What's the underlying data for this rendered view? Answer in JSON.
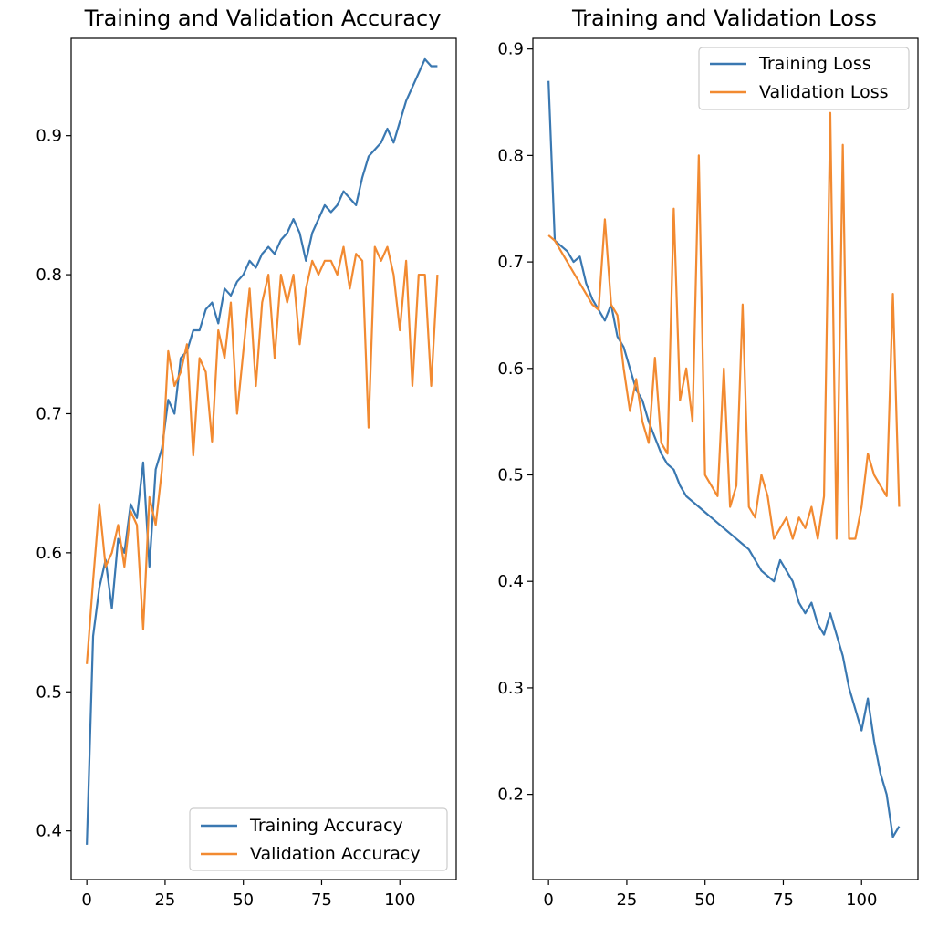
{
  "colors": {
    "training": "#3a78b1",
    "validation": "#f28a31"
  },
  "chart_data": [
    {
      "type": "line",
      "title": "Training and Validation Accuracy",
      "xlabel": "",
      "ylabel": "",
      "xlim": [
        -5,
        118
      ],
      "ylim": [
        0.365,
        0.97
      ],
      "xticks": [
        0,
        25,
        50,
        75,
        100
      ],
      "yticks": [
        0.4,
        0.5,
        0.6,
        0.7,
        0.8,
        0.9
      ],
      "legend_position": "lower-right",
      "x": [
        0,
        2,
        4,
        6,
        8,
        10,
        12,
        14,
        16,
        18,
        20,
        22,
        24,
        26,
        28,
        30,
        32,
        34,
        36,
        38,
        40,
        42,
        44,
        46,
        48,
        50,
        52,
        54,
        56,
        58,
        60,
        62,
        64,
        66,
        68,
        70,
        72,
        74,
        76,
        78,
        80,
        82,
        84,
        86,
        88,
        90,
        92,
        94,
        96,
        98,
        100,
        102,
        104,
        106,
        108,
        110,
        112
      ],
      "series": [
        {
          "name": "Training Accuracy",
          "color_key": "training",
          "values": [
            0.39,
            0.54,
            0.575,
            0.595,
            0.56,
            0.61,
            0.6,
            0.635,
            0.625,
            0.665,
            0.59,
            0.66,
            0.675,
            0.71,
            0.7,
            0.74,
            0.745,
            0.76,
            0.76,
            0.775,
            0.78,
            0.765,
            0.79,
            0.785,
            0.795,
            0.8,
            0.81,
            0.805,
            0.815,
            0.82,
            0.815,
            0.825,
            0.83,
            0.84,
            0.83,
            0.81,
            0.83,
            0.84,
            0.85,
            0.845,
            0.85,
            0.86,
            0.855,
            0.85,
            0.87,
            0.885,
            0.89,
            0.895,
            0.905,
            0.895,
            0.91,
            0.925,
            0.935,
            0.945,
            0.955,
            0.95,
            0.95
          ]
        },
        {
          "name": "Validation Accuracy",
          "color_key": "validation",
          "values": [
            0.52,
            0.58,
            0.635,
            0.59,
            0.6,
            0.62,
            0.59,
            0.63,
            0.62,
            0.545,
            0.64,
            0.62,
            0.66,
            0.745,
            0.72,
            0.73,
            0.75,
            0.67,
            0.74,
            0.73,
            0.68,
            0.76,
            0.74,
            0.78,
            0.7,
            0.745,
            0.79,
            0.72,
            0.78,
            0.8,
            0.74,
            0.8,
            0.78,
            0.8,
            0.75,
            0.79,
            0.81,
            0.8,
            0.81,
            0.81,
            0.8,
            0.82,
            0.79,
            0.815,
            0.81,
            0.69,
            0.82,
            0.81,
            0.82,
            0.8,
            0.76,
            0.81,
            0.72,
            0.8,
            0.8,
            0.72,
            0.8
          ]
        }
      ]
    },
    {
      "type": "line",
      "title": "Training and Validation Loss",
      "xlabel": "",
      "ylabel": "",
      "xlim": [
        -5,
        118
      ],
      "ylim": [
        0.12,
        0.91
      ],
      "xticks": [
        0,
        25,
        50,
        75,
        100
      ],
      "yticks": [
        0.2,
        0.3,
        0.4,
        0.5,
        0.6,
        0.7,
        0.8,
        0.9
      ],
      "legend_position": "upper-right",
      "x": [
        0,
        2,
        4,
        6,
        8,
        10,
        12,
        14,
        16,
        18,
        20,
        22,
        24,
        26,
        28,
        30,
        32,
        34,
        36,
        38,
        40,
        42,
        44,
        46,
        48,
        50,
        52,
        54,
        56,
        58,
        60,
        62,
        64,
        66,
        68,
        70,
        72,
        74,
        76,
        78,
        80,
        82,
        84,
        86,
        88,
        90,
        92,
        94,
        96,
        98,
        100,
        102,
        104,
        106,
        108,
        110,
        112
      ],
      "series": [
        {
          "name": "Training Loss",
          "color_key": "training",
          "values": [
            0.87,
            0.72,
            0.715,
            0.71,
            0.7,
            0.705,
            0.68,
            0.665,
            0.655,
            0.645,
            0.66,
            0.63,
            0.62,
            0.6,
            0.58,
            0.57,
            0.55,
            0.535,
            0.52,
            0.51,
            0.505,
            0.49,
            0.48,
            0.475,
            0.47,
            0.465,
            0.46,
            0.455,
            0.45,
            0.445,
            0.44,
            0.435,
            0.43,
            0.42,
            0.41,
            0.405,
            0.4,
            0.42,
            0.41,
            0.4,
            0.38,
            0.37,
            0.38,
            0.36,
            0.35,
            0.37,
            0.35,
            0.33,
            0.3,
            0.28,
            0.26,
            0.29,
            0.25,
            0.22,
            0.2,
            0.16,
            0.17
          ]
        },
        {
          "name": "Validation Loss",
          "color_key": "validation",
          "values": [
            0.725,
            0.72,
            0.71,
            0.7,
            0.69,
            0.68,
            0.67,
            0.66,
            0.655,
            0.74,
            0.66,
            0.65,
            0.6,
            0.56,
            0.59,
            0.55,
            0.53,
            0.61,
            0.53,
            0.52,
            0.75,
            0.57,
            0.6,
            0.55,
            0.8,
            0.5,
            0.49,
            0.48,
            0.6,
            0.47,
            0.49,
            0.66,
            0.47,
            0.46,
            0.5,
            0.48,
            0.44,
            0.45,
            0.46,
            0.44,
            0.46,
            0.45,
            0.47,
            0.44,
            0.48,
            0.84,
            0.44,
            0.81,
            0.44,
            0.44,
            0.47,
            0.52,
            0.5,
            0.49,
            0.48,
            0.67,
            0.47
          ]
        }
      ]
    }
  ]
}
